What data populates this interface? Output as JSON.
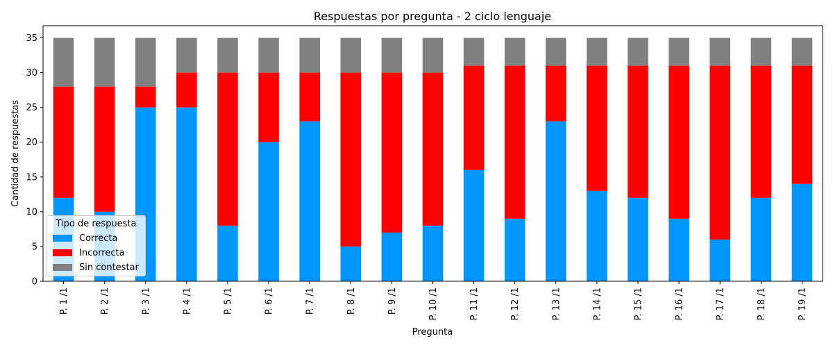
{
  "chart_data": {
    "type": "bar",
    "stacked": true,
    "title": "Respuestas por pregunta - 2 ciclo lenguaje",
    "xlabel": "Pregunta",
    "ylabel": "Cantidad de respuestas",
    "ylim": [
      0,
      36.75
    ],
    "yticks": [
      0,
      5,
      10,
      15,
      20,
      25,
      30,
      35
    ],
    "categories": [
      "P. 1 /1",
      "P. 2 /1",
      "P. 3 /1",
      "P. 4 /1",
      "P. 5 /1",
      "P. 6 /1",
      "P. 7 /1",
      "P. 8 /1",
      "P. 9 /1",
      "P. 10 /1",
      "P. 11 /1",
      "P. 12 /1",
      "P. 13 /1",
      "P. 14 /1",
      "P. 15 /1",
      "P. 16 /1",
      "P. 17 /1",
      "P. 18 /1",
      "P. 19 /1"
    ],
    "series": [
      {
        "name": "Correcta",
        "color": "#0096ff",
        "values": [
          12,
          10,
          25,
          25,
          8,
          20,
          23,
          5,
          7,
          8,
          16,
          9,
          23,
          13,
          12,
          9,
          6,
          12,
          14
        ]
      },
      {
        "name": "Incorrecta",
        "color": "#ff0000",
        "values": [
          16,
          18,
          3,
          5,
          22,
          10,
          7,
          25,
          23,
          22,
          15,
          22,
          8,
          18,
          19,
          22,
          25,
          19,
          17
        ]
      },
      {
        "name": "Sin contestar",
        "color": "#808080",
        "values": [
          7,
          7,
          7,
          5,
          5,
          5,
          5,
          5,
          5,
          5,
          4,
          4,
          4,
          4,
          4,
          4,
          4,
          4,
          4
        ]
      }
    ],
    "legend": {
      "title": "Tipo de respuesta",
      "position": "lower-left"
    },
    "grid": false
  }
}
